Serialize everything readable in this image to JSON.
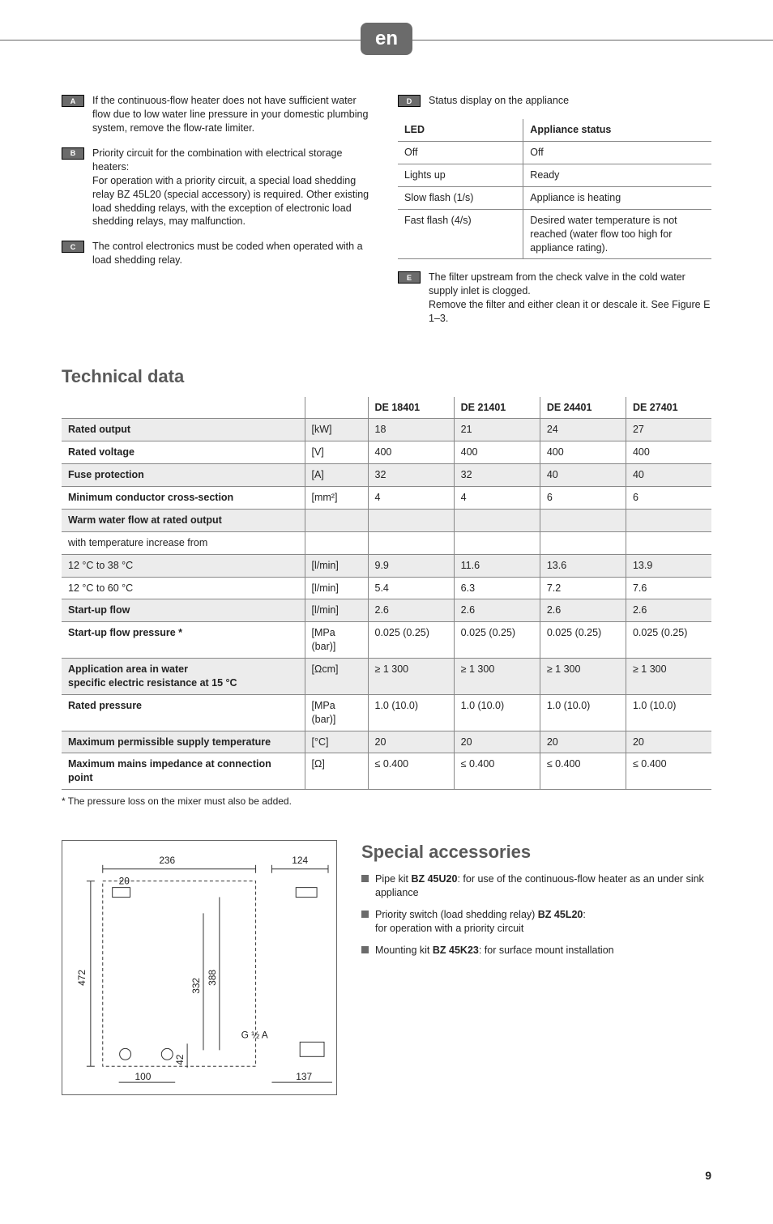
{
  "lang_badge": "en",
  "notes": {
    "left": [
      {
        "ref": "A",
        "text": "If the continuous-flow heater does not have sufficient water flow due to low water line pressure in your domestic plumbing system, remove the flow-rate limiter."
      },
      {
        "ref": "B",
        "text": "Priority circuit for the combination with electrical storage heaters:\nFor operation with a priority circuit, a special load shedding relay BZ 45L20 (special accessory) is required. Other existing load shedding relays, with the exception of electronic load shedding relays, may malfunction."
      },
      {
        "ref": "C",
        "text": "The control electronics must be coded when operated with a load shedding relay."
      }
    ],
    "right_intro": {
      "ref": "D",
      "text": "Status display on the appliance"
    },
    "right_after": {
      "ref": "E",
      "text": "The filter upstream from the check valve in the cold water supply inlet is clogged.\nRemove the filter and either clean it or descale it. See Figure E 1–3."
    }
  },
  "status_table": {
    "headers": [
      "LED",
      "Appliance status"
    ],
    "rows": [
      [
        "Off",
        "Off"
      ],
      [
        "Lights up",
        "Ready"
      ],
      [
        "Slow flash (1/s)",
        "Appliance is heating"
      ],
      [
        "Fast flash (4/s)",
        "Desired water temperature is not reached (water flow too high for appliance rating)."
      ]
    ]
  },
  "tech_title": "Technical data",
  "tech_table": {
    "model_headers": [
      "",
      "",
      "DE 18401",
      "DE 21401",
      "DE 24401",
      "DE 27401"
    ],
    "rows": [
      {
        "zebra": true,
        "label": "Rated output",
        "unit": "[kW]",
        "vals": [
          "18",
          "21",
          "24",
          "27"
        ]
      },
      {
        "zebra": false,
        "label": "Rated voltage",
        "unit": "[V]",
        "vals": [
          "400",
          "400",
          "400",
          "400"
        ]
      },
      {
        "zebra": true,
        "label": "Fuse protection",
        "unit": "[A]",
        "vals": [
          "32",
          "32",
          "40",
          "40"
        ]
      },
      {
        "zebra": false,
        "label": "Minimum conductor cross-section",
        "unit": "[mm²]",
        "vals": [
          "4",
          "4",
          "6",
          "6"
        ]
      },
      {
        "zebra": true,
        "label": "Warm water flow at rated output",
        "unit": "",
        "vals": [
          "",
          "",
          "",
          ""
        ]
      },
      {
        "zebra": false,
        "label": "with temperature increase from",
        "unit": "",
        "vals": [
          "",
          "",
          "",
          ""
        ],
        "nobold": true
      },
      {
        "zebra": true,
        "label": "12 °C to 38 °C",
        "unit": "[l/min]",
        "vals": [
          "9.9",
          "11.6",
          "13.6",
          "13.9"
        ],
        "nobold": true
      },
      {
        "zebra": false,
        "label": "12 °C to 60 °C",
        "unit": "[l/min]",
        "vals": [
          "5.4",
          "6.3",
          "7.2",
          "7.6"
        ],
        "nobold": true
      },
      {
        "zebra": true,
        "label": "Start-up flow",
        "unit": "[l/min]",
        "vals": [
          "2.6",
          "2.6",
          "2.6",
          "2.6"
        ]
      },
      {
        "zebra": false,
        "label": "Start-up flow pressure *",
        "unit": "[MPa (bar)]",
        "vals": [
          "0.025 (0.25)",
          "0.025 (0.25)",
          "0.025 (0.25)",
          "0.025 (0.25)"
        ]
      },
      {
        "zebra": true,
        "label": "Application area in water\nspecific electric resistance at 15 °C",
        "unit": "[Ωcm]",
        "vals": [
          "≥ 1 300",
          "≥ 1 300",
          "≥ 1 300",
          "≥ 1 300"
        ]
      },
      {
        "zebra": false,
        "label": "Rated pressure",
        "unit": "[MPa (bar)]",
        "vals": [
          "1.0 (10.0)",
          "1.0 (10.0)",
          "1.0 (10.0)",
          "1.0 (10.0)"
        ]
      },
      {
        "zebra": true,
        "label": "Maximum permissible supply temperature",
        "unit": "[°C]",
        "vals": [
          "20",
          "20",
          "20",
          "20"
        ]
      },
      {
        "zebra": false,
        "label": "Maximum mains impedance at connection point",
        "unit": "[Ω]",
        "vals": [
          "≤ 0.400",
          "≤ 0.400",
          "≤ 0.400",
          "≤ 0.400"
        ]
      }
    ],
    "footnote": "* The pressure loss on the mixer must also be added."
  },
  "diagram": {
    "dims": {
      "top_width": "236",
      "top_right": "124",
      "inset": "20",
      "height": "472",
      "inner_h1": "332",
      "inner_h2": "388",
      "conn": "G ½ A",
      "bottom_gap": "42",
      "bottom_left": "100",
      "bottom_right": "137"
    }
  },
  "accessories": {
    "title": "Special accessories",
    "items": [
      {
        "pre": "Pipe kit ",
        "bold": "BZ 45U20",
        "post": ": for use of the continuous-flow heater as an under sink appliance"
      },
      {
        "pre": "Priority switch (load shedding relay) ",
        "bold": "BZ 45L20",
        "post": ":\nfor operation with a priority circuit"
      },
      {
        "pre": "Mounting kit ",
        "bold": "BZ 45K23",
        "post": ": for surface mount installation"
      }
    ]
  },
  "page_number": "9",
  "colors": {
    "badge_bg": "#6b6b6b",
    "zebra_bg": "#ececec",
    "rule": "#888888"
  }
}
